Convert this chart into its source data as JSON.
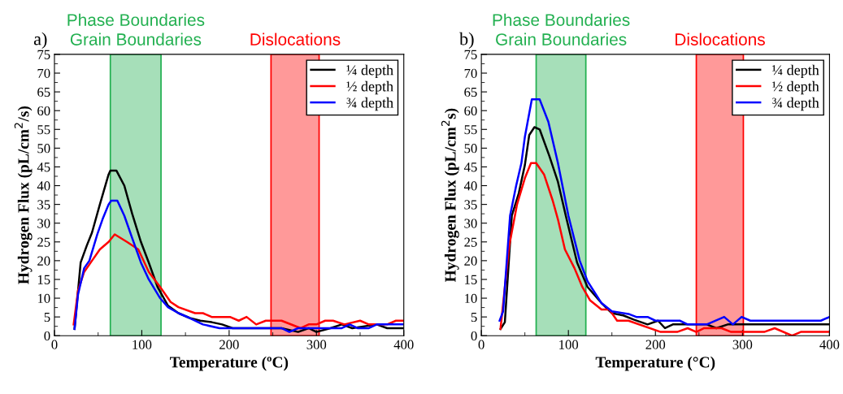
{
  "chart_data": [
    {
      "type": "line",
      "title": "a)",
      "xlabel": "Temperature (ºC)",
      "ylabel": "Hydrogen Flux (pL/cm$^{2}$/s)",
      "xlim": [
        0,
        400
      ],
      "xticks": [
        0,
        100,
        200,
        300,
        400
      ],
      "ylim": [
        0,
        75
      ],
      "yticks": [
        0,
        5,
        10,
        15,
        20,
        25,
        30,
        35,
        40,
        45,
        50,
        55,
        60,
        65,
        70,
        75
      ],
      "legend": "top right",
      "grid": false,
      "bands": [
        {
          "axis": "x",
          "from": 64,
          "to": 122,
          "label": "Phase Boundaries\nGrain Boundaries",
          "color": "#22b050"
        },
        {
          "axis": "x",
          "from": 248,
          "to": 303,
          "label": "Dislocations",
          "color": "#ff0000"
        }
      ],
      "series": [
        {
          "name": "¼ depth",
          "color": "#000000",
          "x": [
            23,
            30,
            37,
            43,
            52,
            62,
            64,
            71,
            80,
            89,
            99,
            108,
            118,
            130,
            142,
            155,
            167,
            180,
            192,
            204,
            242,
            260,
            279,
            291,
            300,
            316,
            329,
            341,
            369,
            381,
            400
          ],
          "values": [
            1.8,
            19.5,
            24,
            27.5,
            35,
            43,
            44,
            44,
            40,
            32.5,
            25,
            19.5,
            13,
            8,
            6,
            4.7,
            4,
            3.6,
            3,
            2,
            2,
            2,
            1,
            2,
            1,
            2,
            3,
            2,
            3,
            2,
            2
          ]
        },
        {
          "name": "½ depth",
          "color": "#ff0000",
          "x": [
            22,
            27,
            34,
            43,
            52,
            62,
            69,
            83,
            96,
            108,
            121,
            133,
            142,
            161,
            170,
            180,
            201,
            211,
            220,
            231,
            242,
            260,
            282,
            291,
            300,
            310,
            319,
            332,
            350,
            360,
            381,
            391,
            400
          ],
          "values": [
            3,
            12,
            17,
            20,
            23,
            25,
            27,
            25,
            23,
            17,
            13,
            9,
            7.6,
            6,
            6,
            5,
            5,
            4,
            5,
            3,
            4,
            4,
            2,
            3,
            3,
            4,
            4,
            3,
            4,
            3,
            3,
            4,
            4
          ]
        },
        {
          "name": "¾ depth",
          "color": "#0000ff",
          "x": [
            23,
            27,
            34,
            40,
            49,
            55,
            62,
            65,
            72,
            80,
            89,
            99,
            108,
            121,
            130,
            142,
            155,
            170,
            189,
            260,
            269,
            279,
            329,
            338,
            347,
            360,
            369,
            400
          ],
          "values": [
            1.8,
            11,
            18,
            20,
            27,
            31,
            35,
            36,
            36,
            32,
            26,
            19.5,
            15,
            10,
            7.6,
            6,
            4.7,
            3,
            2,
            2,
            1,
            2,
            2,
            3,
            2,
            2,
            3,
            3
          ]
        }
      ]
    },
    {
      "type": "line",
      "title": "b)",
      "xlabel": "Temperature (°C)",
      "ylabel": "Hydrogen Flux (pL/cm$^{2}$s)",
      "xlim": [
        0,
        400
      ],
      "xticks": [
        0,
        100,
        200,
        300,
        400
      ],
      "ylim": [
        0,
        75
      ],
      "yticks": [
        0,
        5,
        10,
        15,
        20,
        25,
        30,
        35,
        40,
        45,
        50,
        55,
        60,
        65,
        70,
        75
      ],
      "legend": "top right",
      "grid": false,
      "bands": [
        {
          "axis": "x",
          "from": 63,
          "to": 120,
          "label": "Phase Boundaries\nGrain Boundaries",
          "color": "#22b050"
        },
        {
          "axis": "x",
          "from": 247,
          "to": 301,
          "label": "Dislocations",
          "color": "#ff0000"
        }
      ],
      "series": [
        {
          "name": "¼ depth",
          "color": "#000000",
          "x": [
            22,
            27,
            35,
            43,
            50,
            55,
            61,
            67,
            78,
            88,
            97,
            110,
            122,
            138,
            150,
            163,
            175,
            191,
            203,
            211,
            220,
            247,
            259,
            270,
            283,
            400
          ],
          "values": [
            1.8,
            3.6,
            32,
            38,
            45.5,
            53.5,
            55.6,
            55,
            48,
            41,
            32,
            19.5,
            13,
            8.7,
            6,
            5.4,
            4.3,
            3,
            4,
            2,
            3,
            3,
            3,
            2,
            3,
            3
          ]
        },
        {
          "name": "½ depth",
          "color": "#ff0000",
          "x": [
            22,
            32,
            41,
            50,
            57,
            63,
            72,
            82,
            88,
            96,
            107,
            116,
            125,
            138,
            147,
            156,
            169,
            206,
            225,
            237,
            247,
            256,
            276,
            287,
            325,
            337,
            357,
            367,
            400
          ],
          "values": [
            1.8,
            24,
            35,
            42,
            46,
            46,
            43,
            36,
            31,
            23,
            18,
            13,
            9.4,
            7,
            7,
            4,
            4,
            1,
            1,
            2,
            1,
            2,
            2,
            1,
            1,
            2,
            0,
            1,
            1
          ]
        },
        {
          "name": "¾ depth",
          "color": "#0000ff",
          "x": [
            21,
            25,
            33,
            40,
            46,
            50,
            58,
            67,
            77,
            88,
            100,
            113,
            122,
            138,
            150,
            169,
            178,
            191,
            200,
            228,
            237,
            259,
            279,
            289,
            299,
            309,
            390,
            400
          ],
          "values": [
            4,
            6.5,
            32,
            40,
            46,
            53,
            63,
            63,
            57,
            46,
            32,
            20,
            14.5,
            8.7,
            6.5,
            5.8,
            5,
            5,
            4,
            4,
            3,
            3,
            5,
            3,
            5,
            4,
            4,
            5
          ]
        }
      ]
    }
  ]
}
